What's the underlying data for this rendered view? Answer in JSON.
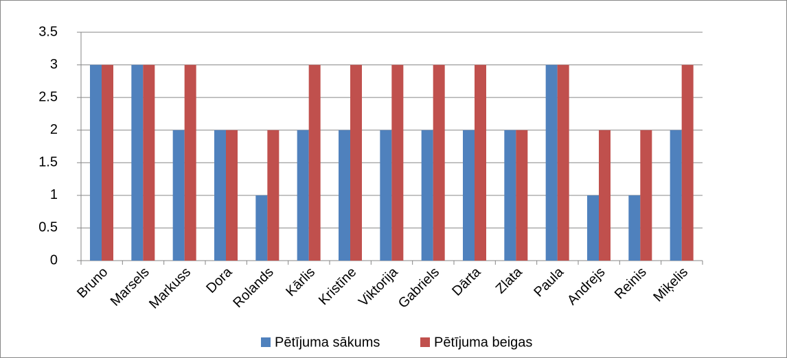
{
  "chart_data": {
    "type": "bar",
    "categories": [
      "Bruno",
      "Marsels",
      "Markuss",
      "Dora",
      "Rolands",
      "Kārlis",
      "Kristīne",
      "Viktorija",
      "Gabriels",
      "Dārta",
      "Zlata",
      "Paula",
      "Andrejs",
      "Reinis",
      "Miķelis"
    ],
    "series": [
      {
        "name": "Pētījuma sākums",
        "color": "#4f81bd",
        "values": [
          3,
          3,
          2,
          2,
          1,
          2,
          2,
          2,
          2,
          2,
          2,
          3,
          1,
          1,
          2
        ]
      },
      {
        "name": "Pētījuma beigas",
        "color": "#c0504d",
        "values": [
          3,
          3,
          3,
          2,
          2,
          3,
          3,
          3,
          3,
          3,
          2,
          3,
          2,
          2,
          3
        ]
      }
    ],
    "ylim": [
      0,
      3.5
    ],
    "yticks": [
      0,
      0.5,
      1,
      1.5,
      2,
      2.5,
      3,
      3.5
    ],
    "grid": true,
    "legend": "bottom"
  }
}
